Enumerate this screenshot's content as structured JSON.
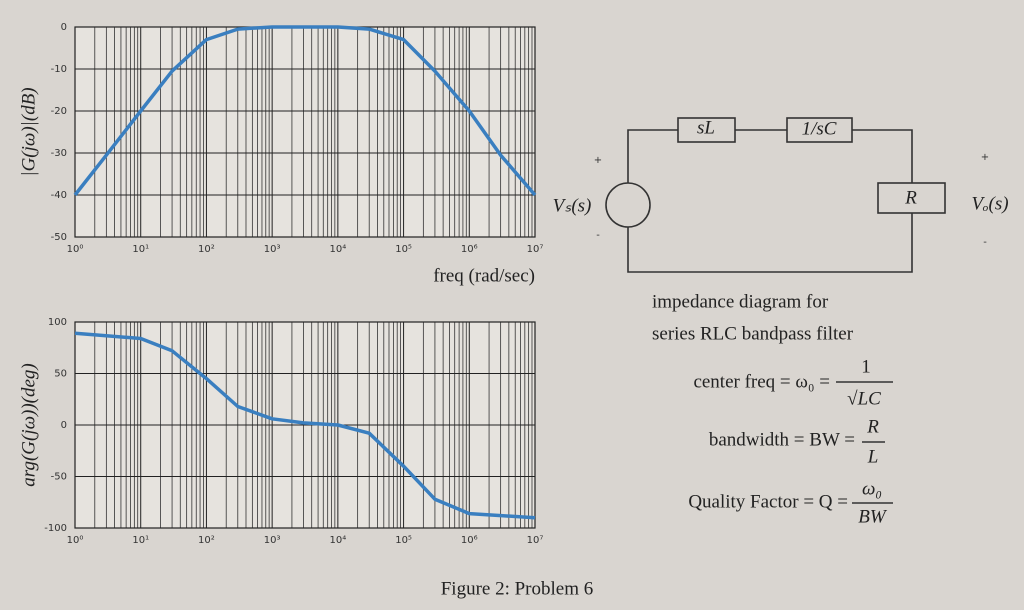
{
  "chart_data": [
    {
      "type": "line",
      "ylabel": "|G(jω)|(dB)",
      "xlabel": "freq (rad/sec)",
      "xlog": true,
      "grid": true,
      "color": "#3a7fc0",
      "x": [
        1,
        3,
        10,
        30,
        100,
        300,
        1000,
        10000,
        30000,
        100000,
        300000,
        1000000,
        3000000,
        10000000
      ],
      "values": [
        -40,
        -30.5,
        -20,
        -10.5,
        -3,
        -0.5,
        0,
        0,
        -0.5,
        -3,
        -10.5,
        -20,
        -30.5,
        -40
      ],
      "xlim": [
        1,
        10000000
      ],
      "xticks": [
        {
          "value": 1,
          "label": "10⁰"
        },
        {
          "value": 10,
          "label": "10¹"
        },
        {
          "value": 100,
          "label": "10²"
        },
        {
          "value": 1000,
          "label": "10³"
        },
        {
          "value": 10000,
          "label": "10⁴"
        },
        {
          "value": 100000,
          "label": "10⁵"
        },
        {
          "value": 1000000,
          "label": "10⁶"
        },
        {
          "value": 10000000,
          "label": "10⁷"
        }
      ],
      "ylim": [
        -50,
        0
      ],
      "yticks": [
        -50,
        -40,
        -30,
        -20,
        -10,
        0
      ]
    },
    {
      "type": "line",
      "ylabel": "arg(G(jω))(deg)",
      "xlog": true,
      "grid": true,
      "color": "#3a7fc0",
      "x": [
        1,
        10,
        30,
        100,
        300,
        1000,
        3000,
        10000,
        30000,
        100000,
        300000,
        1000000,
        10000000
      ],
      "values": [
        89,
        84,
        72,
        45,
        18,
        6,
        2,
        0,
        -8,
        -40,
        -72,
        -86,
        -90
      ],
      "xlim": [
        1,
        10000000
      ],
      "xticks": [
        {
          "value": 1,
          "label": "10⁰"
        },
        {
          "value": 10,
          "label": "10¹"
        },
        {
          "value": 100,
          "label": "10²"
        },
        {
          "value": 1000,
          "label": "10³"
        },
        {
          "value": 10000,
          "label": "10⁴"
        },
        {
          "value": 100000,
          "label": "10⁵"
        },
        {
          "value": 1000000,
          "label": "10⁶"
        },
        {
          "value": 10000000,
          "label": "10⁷"
        }
      ],
      "ylim": [
        -100,
        100
      ],
      "yticks": [
        -100,
        -50,
        0,
        50,
        100
      ]
    }
  ],
  "circuit": {
    "inductor": "sL",
    "capacitor": "1/sC",
    "resistor": "R",
    "source": "Vₛ(s)",
    "output": "Vₒ(s)",
    "plus": "+",
    "minus": "-"
  },
  "notes": {
    "line1": "impedance diagram for",
    "line2": "series RLC bandpass filter",
    "center": {
      "lhs": "center freq = ω₀ =",
      "num": "1",
      "den": "√LC"
    },
    "bandwidth": {
      "lhs": "bandwidth = BW =",
      "num": "R",
      "den": "L"
    },
    "quality": {
      "lhs": "Quality Factor = Q =",
      "num": "ω₀",
      "den": "BW"
    }
  },
  "caption": "Figure 2: Problem 6"
}
